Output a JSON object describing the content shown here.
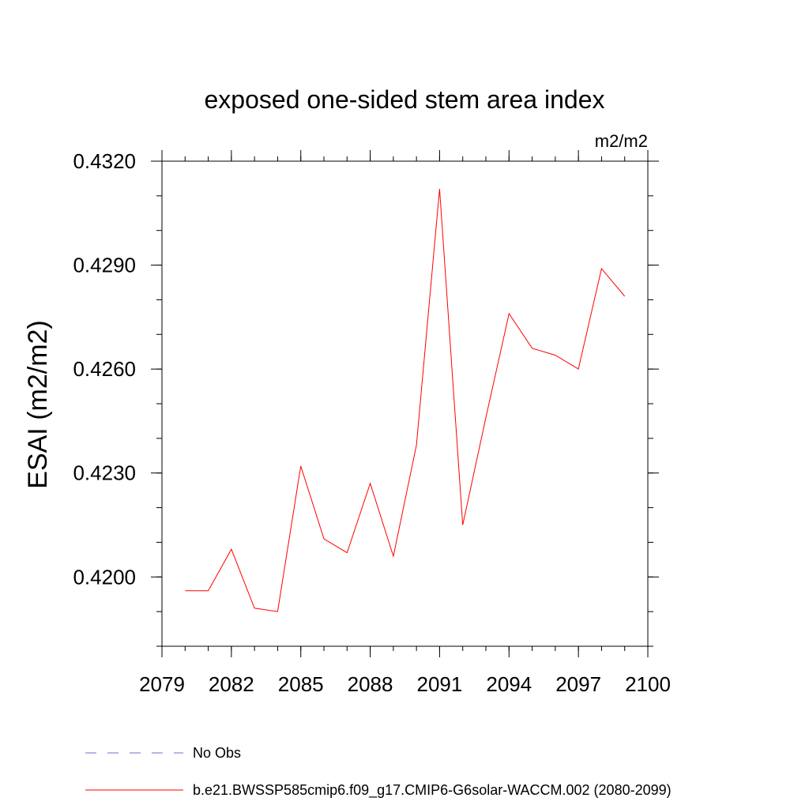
{
  "chart_data": {
    "type": "line",
    "title": "exposed one-sided stem area index",
    "units_label": "m2/m2",
    "ylabel": "ESAI  (m2/m2)",
    "xlabel": "",
    "xlim": [
      2079,
      2100
    ],
    "ylim": [
      0.418,
      0.432
    ],
    "x_ticks": [
      2079,
      2082,
      2085,
      2088,
      2091,
      2094,
      2097,
      2100
    ],
    "x_tick_labels": [
      "2079",
      "2082",
      "2085",
      "2088",
      "2091",
      "2094",
      "2097",
      "2100"
    ],
    "y_ticks": [
      0.42,
      0.423,
      0.426,
      0.429,
      0.432
    ],
    "y_tick_labels": [
      "0.4200",
      "0.4230",
      "0.4260",
      "0.4290",
      "0.4320"
    ],
    "y_minor_step": 0.001,
    "x_minor_step": 1,
    "grid": false,
    "legend_position": "bottom",
    "series": [
      {
        "name": "b.e21.BWSSP585cmip6.f09_g17.CMIP6-G6solar-WACCM.002 (2080-2099)",
        "color": "#ff0000",
        "style": "solid",
        "x": [
          2080,
          2081,
          2082,
          2083,
          2084,
          2085,
          2086,
          2087,
          2088,
          2089,
          2090,
          2091,
          2092,
          2093,
          2094,
          2095,
          2096,
          2097,
          2098,
          2099
        ],
        "values": [
          0.4196,
          0.4196,
          0.4208,
          0.4191,
          0.419,
          0.4232,
          0.4211,
          0.4207,
          0.4227,
          0.4206,
          0.4238,
          0.4312,
          0.4215,
          0.4246,
          0.4276,
          0.4266,
          0.4264,
          0.426,
          0.4289,
          0.4281
        ]
      },
      {
        "name": "No Obs",
        "color": "#7b68c8",
        "style": "dashed",
        "x": [],
        "values": []
      }
    ]
  }
}
